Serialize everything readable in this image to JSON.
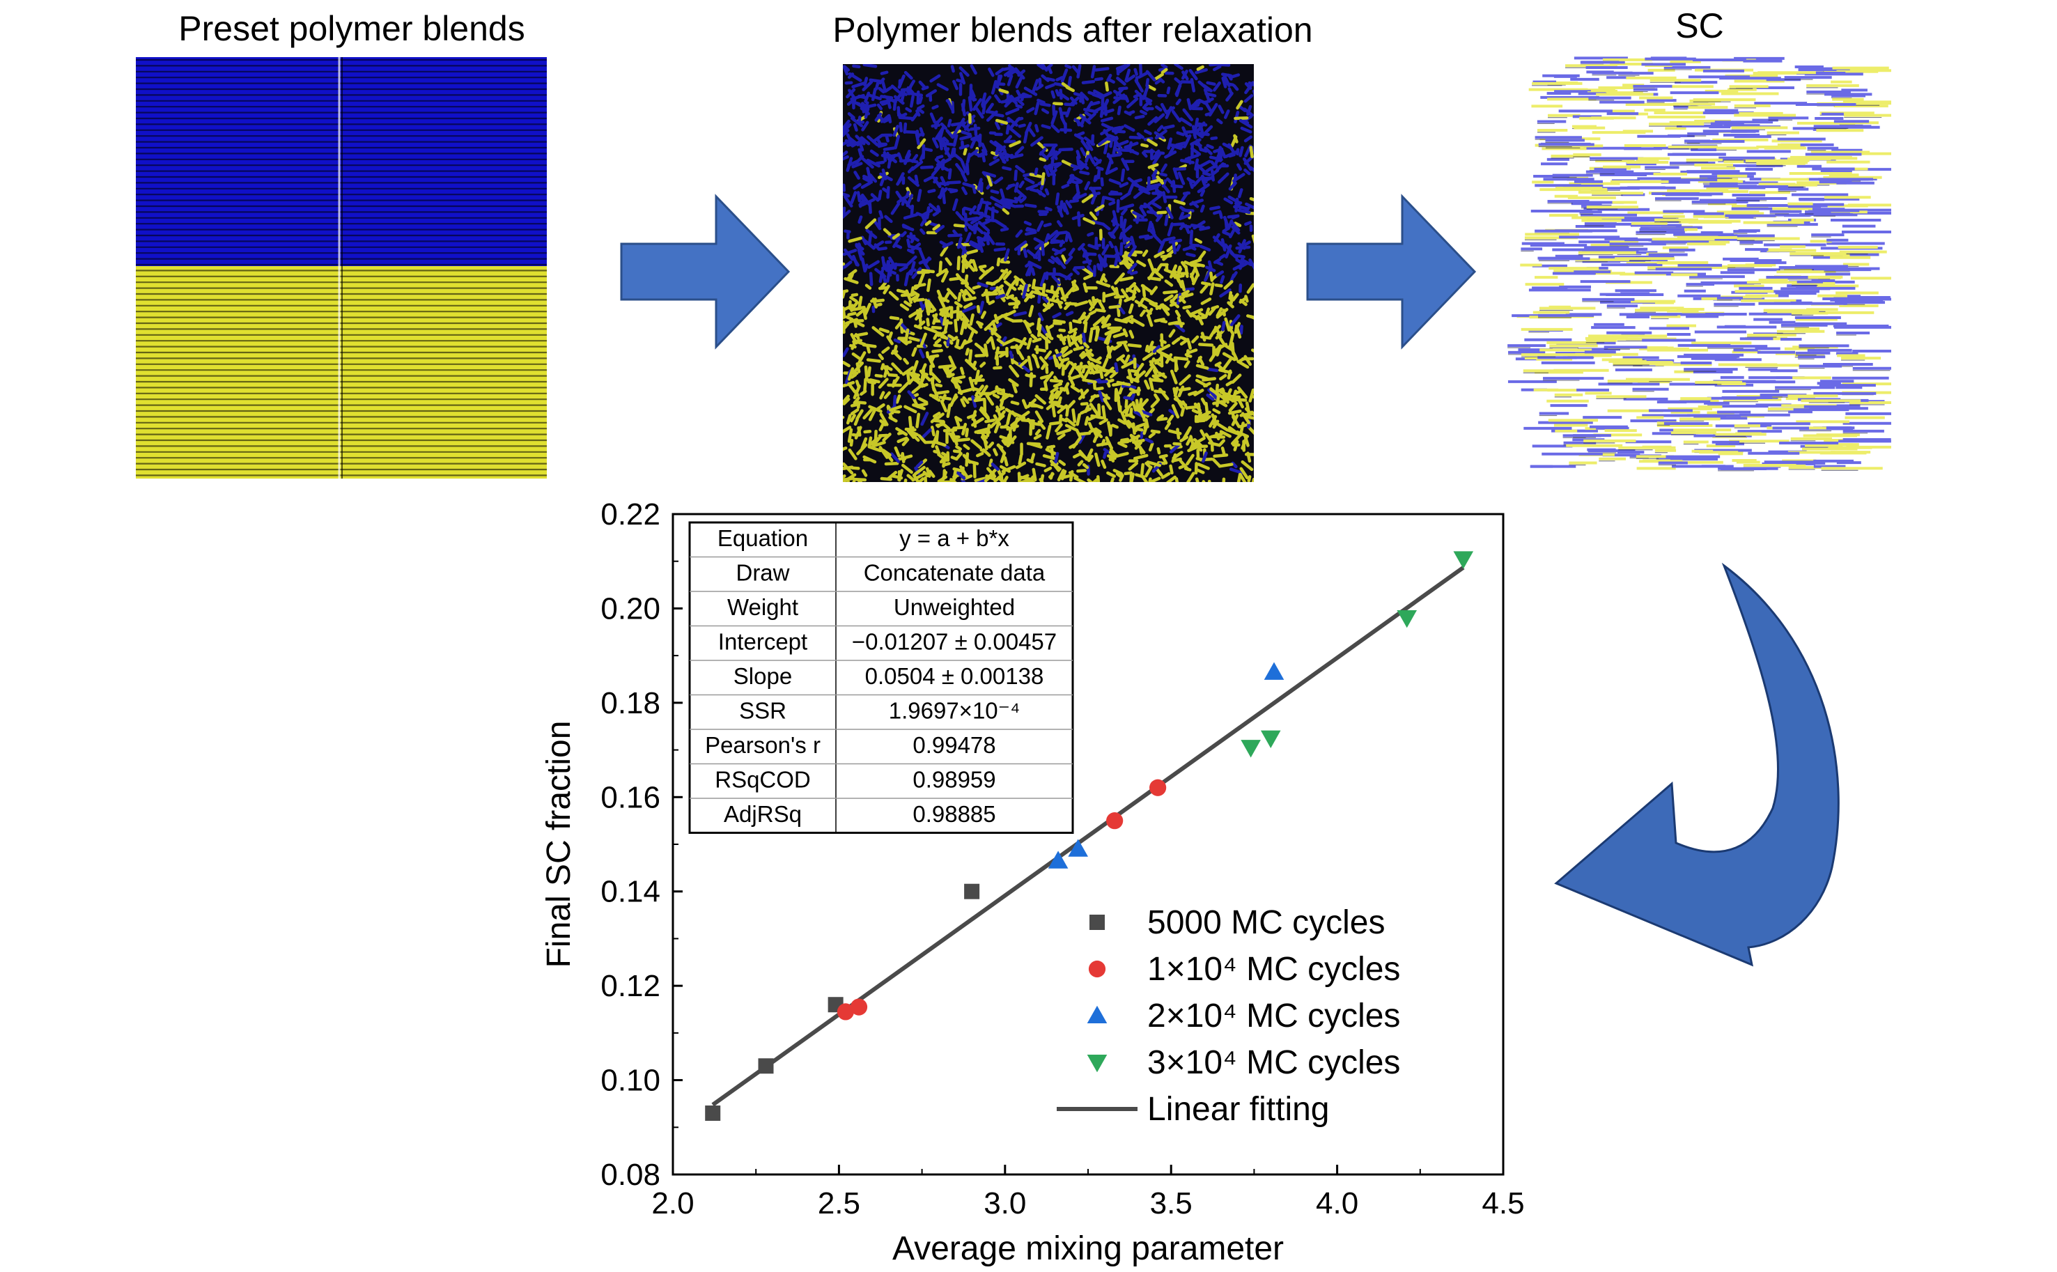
{
  "panels": {
    "preset": {
      "title": "Preset polymer blends",
      "colors": {
        "top": "#1010c8",
        "bottom": "#e0e030",
        "line": "#000000"
      }
    },
    "relaxed": {
      "title": "Polymer blends after relaxation",
      "colors": {
        "top": "#1f1fb0",
        "bottom": "#c8c828",
        "bg": "#0a0a14"
      }
    },
    "sc": {
      "title": "SC",
      "colors": {
        "blue": "#6a6ae6",
        "yellow": "#eded6a"
      }
    }
  },
  "arrows": {
    "fill": "#4472c4",
    "stroke": "#2b4f8a",
    "curved_fill": "#3d6ab8"
  },
  "chart_data": {
    "type": "scatter",
    "xlabel": "Average mixing parameter",
    "ylabel": "Final SC fraction",
    "xlim": [
      2.0,
      4.5
    ],
    "ylim": [
      0.08,
      0.22
    ],
    "xticks": [
      "2.0",
      "2.5",
      "3.0",
      "3.5",
      "4.0",
      "4.5"
    ],
    "yticks": [
      "0.08",
      "0.10",
      "0.12",
      "0.14",
      "0.16",
      "0.18",
      "0.20",
      "0.22"
    ],
    "grid": false,
    "legend_position": "bottom-right",
    "series": [
      {
        "name": "5000  MC cycles",
        "marker": "square",
        "color": "#4a4a4a",
        "points": [
          [
            2.12,
            0.093
          ],
          [
            2.28,
            0.103
          ],
          [
            2.49,
            0.116
          ],
          [
            2.9,
            0.14
          ]
        ]
      },
      {
        "name": "1×10⁴ MC cycles",
        "marker": "circle",
        "color": "#e53935",
        "points": [
          [
            2.52,
            0.1145
          ],
          [
            2.56,
            0.1155
          ],
          [
            3.33,
            0.155
          ],
          [
            3.46,
            0.162
          ]
        ]
      },
      {
        "name": "2×10⁴ MC cycles",
        "marker": "triangle-up",
        "color": "#1e6fd9",
        "points": [
          [
            3.16,
            0.1465
          ],
          [
            3.22,
            0.149
          ],
          [
            3.81,
            0.1865
          ]
        ]
      },
      {
        "name": "3×10⁴ MC cycles",
        "marker": "triangle-down",
        "color": "#2ea85a",
        "points": [
          [
            3.74,
            0.1705
          ],
          [
            3.8,
            0.1725
          ],
          [
            4.21,
            0.198
          ],
          [
            4.38,
            0.2105
          ]
        ]
      }
    ],
    "fit": {
      "name": "Linear fitting",
      "color": "#4a4a4a",
      "intercept": -0.01207,
      "slope": 0.0504,
      "x_range": [
        2.12,
        4.38
      ]
    },
    "fit_table": [
      [
        "Equation",
        "y = a + b*x"
      ],
      [
        "Draw",
        "Concatenate data"
      ],
      [
        "Weight",
        "Unweighted"
      ],
      [
        "Intercept",
        "−0.01207 ± 0.00457"
      ],
      [
        "Slope",
        "0.0504 ± 0.00138"
      ],
      [
        "SSR",
        "1.9697×10⁻⁴"
      ],
      [
        "Pearson's r",
        "0.99478"
      ],
      [
        "RSqCOD",
        "0.98959"
      ],
      [
        "AdjRSq",
        "0.98885"
      ]
    ]
  }
}
